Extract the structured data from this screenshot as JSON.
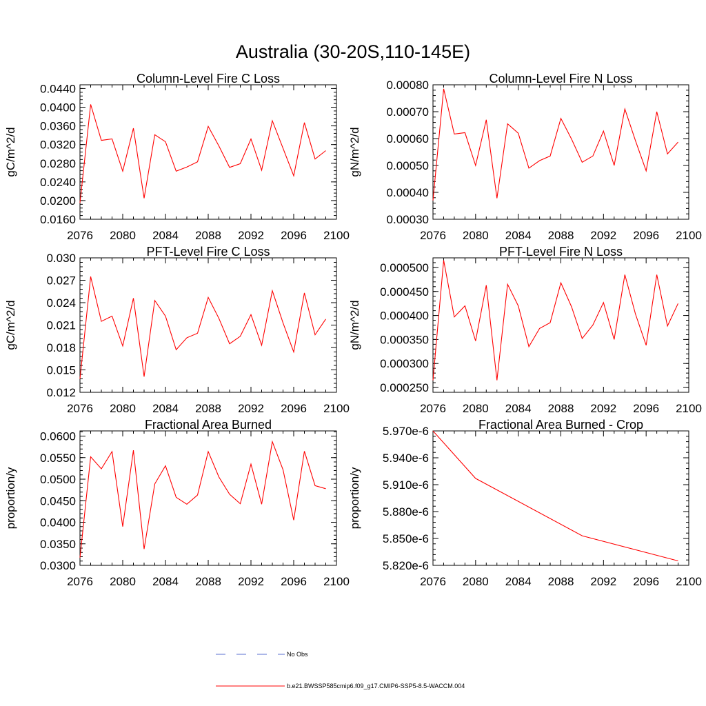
{
  "figure": {
    "title": "Australia (30-20S,110-145E)"
  },
  "legend": [
    {
      "label": "No Obs",
      "color": "#5a6fd0",
      "style": "dashed"
    },
    {
      "label": "b.e21.BWSSP585cmip6.f09_g17.CMIP6-SSP5-8.5-WACCM.004",
      "color": "#ff0000",
      "style": "solid"
    }
  ],
  "chart_data": [
    {
      "type": "line",
      "title": "Column-Level Fire C Loss",
      "ylabel": "gC/m^2/d",
      "xlim": [
        2076,
        2100
      ],
      "ylim": [
        0.016,
        0.0448
      ],
      "xticks": [
        2076,
        2080,
        2084,
        2088,
        2092,
        2096,
        2100
      ],
      "xtick_labels": [
        "2076",
        "2080",
        "2084",
        "2088",
        "2092",
        "2096",
        "2100"
      ],
      "yticks": [
        0.016,
        0.02,
        0.024,
        0.028,
        0.032,
        0.036,
        0.04,
        0.044
      ],
      "ytick_labels": [
        "0.0160",
        "0.0200",
        "0.0240",
        "0.0280",
        "0.0320",
        "0.0360",
        "0.0400",
        "0.0440"
      ],
      "series": [
        {
          "name": "b.e21.BWSSP585cmip6.f09_g17.CMIP6-SSP5-8.5-WACCM.004",
          "color": "#ff0000",
          "x": [
            2076,
            2077,
            2078,
            2079,
            2080,
            2081,
            2082,
            2083,
            2084,
            2085,
            2086,
            2087,
            2088,
            2089,
            2090,
            2091,
            2092,
            2093,
            2094,
            2095,
            2096,
            2097,
            2098,
            2099
          ],
          "values": [
            0.0195,
            0.0406,
            0.0329,
            0.0332,
            0.0263,
            0.0355,
            0.0205,
            0.0341,
            0.0326,
            0.0263,
            0.0272,
            0.0283,
            0.0359,
            0.0317,
            0.0271,
            0.0279,
            0.0332,
            0.0265,
            0.0371,
            0.0312,
            0.0253,
            0.0367,
            0.0289,
            0.0307
          ]
        }
      ]
    },
    {
      "type": "line",
      "title": "Column-Level Fire N Loss",
      "ylabel": "gN/m^2/d",
      "xlim": [
        2076,
        2100
      ],
      "ylim": [
        0.0003,
        0.0008
      ],
      "xticks": [
        2076,
        2080,
        2084,
        2088,
        2092,
        2096,
        2100
      ],
      "xtick_labels": [
        "2076",
        "2080",
        "2084",
        "2088",
        "2092",
        "2096",
        "2100"
      ],
      "yticks": [
        0.0003,
        0.0004,
        0.0005,
        0.0006,
        0.0007,
        0.0008
      ],
      "ytick_labels": [
        "0.00030",
        "0.00040",
        "0.00050",
        "0.00060",
        "0.00070",
        "0.00080"
      ],
      "series": [
        {
          "name": "b.e21.BWSSP585cmip6.f09_g17.CMIP6-SSP5-8.5-WACCM.004",
          "color": "#ff0000",
          "x": [
            2076,
            2077,
            2078,
            2079,
            2080,
            2081,
            2082,
            2083,
            2084,
            2085,
            2086,
            2087,
            2088,
            2089,
            2090,
            2091,
            2092,
            2093,
            2094,
            2095,
            2096,
            2097,
            2098,
            2099
          ],
          "values": [
            0.00037,
            0.000785,
            0.000617,
            0.000622,
            0.0005,
            0.00067,
            0.000378,
            0.000655,
            0.00062,
            0.00049,
            0.000518,
            0.000535,
            0.000675,
            0.000598,
            0.000512,
            0.000535,
            0.000628,
            0.0005,
            0.00071,
            0.000592,
            0.00048,
            0.0007,
            0.000543,
            0.000587
          ]
        }
      ]
    },
    {
      "type": "line",
      "title": "PFT-Level Fire C Loss",
      "ylabel": "gC/m^2/d",
      "xlim": [
        2076,
        2100
      ],
      "ylim": [
        0.012,
        0.03
      ],
      "xticks": [
        2076,
        2080,
        2084,
        2088,
        2092,
        2096,
        2100
      ],
      "xtick_labels": [
        "2076",
        "2080",
        "2084",
        "2088",
        "2092",
        "2096",
        "2100"
      ],
      "yticks": [
        0.012,
        0.015,
        0.018,
        0.021,
        0.024,
        0.027,
        0.03
      ],
      "ytick_labels": [
        "0.012",
        "0.015",
        "0.018",
        "0.021",
        "0.024",
        "0.027",
        "0.030"
      ],
      "series": [
        {
          "name": "b.e21.BWSSP585cmip6.f09_g17.CMIP6-SSP5-8.5-WACCM.004",
          "color": "#ff0000",
          "x": [
            2076,
            2077,
            2078,
            2079,
            2080,
            2081,
            2082,
            2083,
            2084,
            2085,
            2086,
            2087,
            2088,
            2089,
            2090,
            2091,
            2092,
            2093,
            2094,
            2095,
            2096,
            2097,
            2098,
            2099
          ],
          "values": [
            0.0138,
            0.0275,
            0.0215,
            0.0222,
            0.0182,
            0.0246,
            0.0141,
            0.0243,
            0.0222,
            0.0177,
            0.0193,
            0.0199,
            0.0247,
            0.0219,
            0.0185,
            0.0195,
            0.0224,
            0.0183,
            0.0256,
            0.0213,
            0.0174,
            0.0253,
            0.0197,
            0.0218
          ]
        }
      ]
    },
    {
      "type": "line",
      "title": "PFT-Level Fire N Loss",
      "ylabel": "gN/m^2/d",
      "xlim": [
        2076,
        2100
      ],
      "ylim": [
        0.00024,
        0.00052
      ],
      "xticks": [
        2076,
        2080,
        2084,
        2088,
        2092,
        2096,
        2100
      ],
      "xtick_labels": [
        "2076",
        "2080",
        "2084",
        "2088",
        "2092",
        "2096",
        "2100"
      ],
      "yticks": [
        0.00025,
        0.0003,
        0.00035,
        0.0004,
        0.00045,
        0.0005
      ],
      "ytick_labels": [
        "0.000250",
        "0.000300",
        "0.000350",
        "0.000400",
        "0.000450",
        "0.000500"
      ],
      "series": [
        {
          "name": "b.e21.BWSSP585cmip6.f09_g17.CMIP6-SSP5-8.5-WACCM.004",
          "color": "#ff0000",
          "x": [
            2076,
            2077,
            2078,
            2079,
            2080,
            2081,
            2082,
            2083,
            2084,
            2085,
            2086,
            2087,
            2088,
            2089,
            2090,
            2091,
            2092,
            2093,
            2094,
            2095,
            2096,
            2097,
            2098,
            2099
          ],
          "values": [
            0.000265,
            0.000515,
            0.000397,
            0.00042,
            0.000347,
            0.000463,
            0.000265,
            0.000465,
            0.00042,
            0.000335,
            0.000373,
            0.000385,
            0.000468,
            0.000418,
            0.000352,
            0.00038,
            0.000427,
            0.00035,
            0.000485,
            0.000403,
            0.000338,
            0.000485,
            0.000378,
            0.000425
          ]
        }
      ]
    },
    {
      "type": "line",
      "title": "Fractional Area Burned",
      "ylabel": "proportion/y",
      "xlim": [
        2076,
        2100
      ],
      "ylim": [
        0.03,
        0.0612
      ],
      "xticks": [
        2076,
        2080,
        2084,
        2088,
        2092,
        2096,
        2100
      ],
      "xtick_labels": [
        "2076",
        "2080",
        "2084",
        "2088",
        "2092",
        "2096",
        "2100"
      ],
      "yticks": [
        0.03,
        0.035,
        0.04,
        0.045,
        0.05,
        0.055,
        0.06
      ],
      "ytick_labels": [
        "0.0300",
        "0.0350",
        "0.0400",
        "0.0450",
        "0.0500",
        "0.0550",
        "0.0600"
      ],
      "series": [
        {
          "name": "b.e21.BWSSP585cmip6.f09_g17.CMIP6-SSP5-8.5-WACCM.004",
          "color": "#ff0000",
          "x": [
            2076,
            2077,
            2078,
            2079,
            2080,
            2081,
            2082,
            2083,
            2084,
            2085,
            2086,
            2087,
            2088,
            2089,
            2090,
            2091,
            2092,
            2093,
            2094,
            2095,
            2096,
            2097,
            2098,
            2099
          ],
          "values": [
            0.0318,
            0.0552,
            0.0524,
            0.0564,
            0.039,
            0.0567,
            0.0338,
            0.0489,
            0.0531,
            0.0458,
            0.0442,
            0.0463,
            0.0564,
            0.0505,
            0.0465,
            0.0443,
            0.0535,
            0.0442,
            0.0587,
            0.0522,
            0.0405,
            0.0565,
            0.0485,
            0.0478
          ]
        }
      ]
    },
    {
      "type": "line",
      "title": "Fractional Area Burned - Crop",
      "ylabel": "proportion/y",
      "xlim": [
        2076,
        2100
      ],
      "ylim": [
        5.82e-06,
        5.97e-06
      ],
      "xticks": [
        2076,
        2080,
        2084,
        2088,
        2092,
        2096,
        2100
      ],
      "xtick_labels": [
        "2076",
        "2080",
        "2084",
        "2088",
        "2092",
        "2096",
        "2100"
      ],
      "yticks": [
        5.82e-06,
        5.85e-06,
        5.88e-06,
        5.91e-06,
        5.94e-06,
        5.97e-06
      ],
      "ytick_labels": [
        "5.820e-6",
        "5.850e-6",
        "5.880e-6",
        "5.910e-6",
        "5.940e-6",
        "5.970e-6"
      ],
      "series": [
        {
          "name": "b.e21.BWSSP585cmip6.f09_g17.CMIP6-SSP5-8.5-WACCM.004",
          "color": "#ff0000",
          "x": [
            2076,
            2080,
            2090,
            2099
          ],
          "values": [
            5.97e-06,
            5.917e-06,
            5.853e-06,
            5.825e-06
          ]
        }
      ]
    }
  ]
}
